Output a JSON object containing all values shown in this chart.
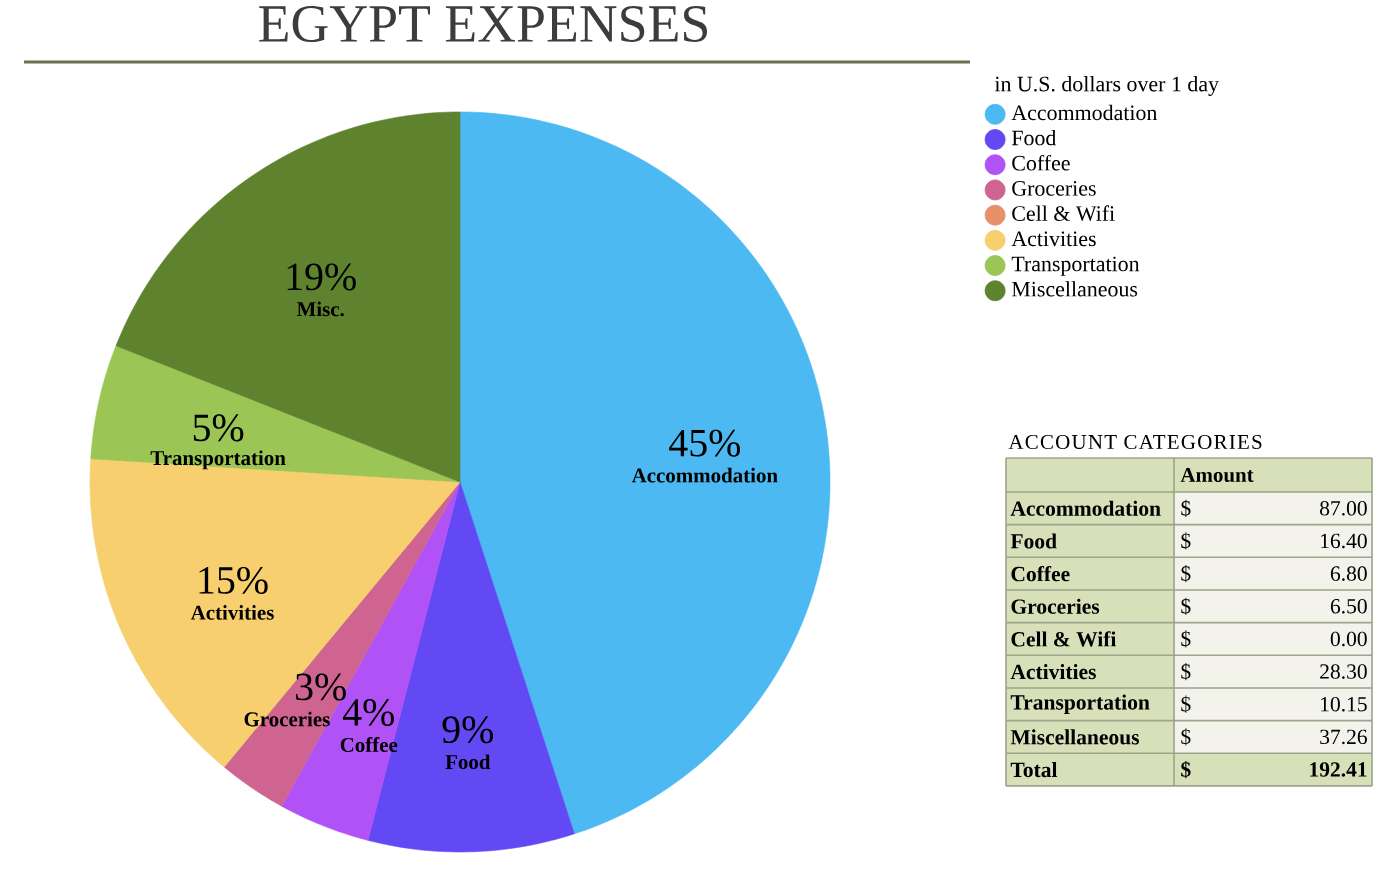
{
  "chart_data": [
    {
      "type": "pie",
      "title": "EGYPT EXPENSES",
      "legend_title": "in U.S. dollars over 1 day",
      "categories": [
        "Accommodation",
        "Food",
        "Coffee",
        "Groceries",
        "Cell & Wifi",
        "Activities",
        "Transportation",
        "Miscellaneous"
      ],
      "values": [
        45,
        9,
        4,
        3,
        0,
        15,
        5,
        19
      ],
      "colors": [
        "#4cb9f2",
        "#6249f3",
        "#b052f5",
        "#cf6491",
        "#e8906a",
        "#f7cf6e",
        "#9bc554",
        "#5f822f"
      ],
      "value_labels": [
        "45%",
        "9%",
        "4%",
        "3%",
        null,
        "15%",
        "5%",
        "19%"
      ],
      "annotations": [
        "Accommodation",
        "Food",
        "Coffee",
        "Groceries",
        "Activities",
        "Transportation",
        "Misc."
      ],
      "legend": "top right"
    },
    {
      "type": "other",
      "title": "ACCOUNT CATEGORIES",
      "xlabel": "Amount",
      "categories": [
        "Accommodation",
        "Food",
        "Coffee",
        "Groceries",
        "Cell & Wifi",
        "Activities",
        "Transportation",
        "Miscellaneous",
        "Total"
      ],
      "value_labels": [
        "87.00",
        "16.40",
        "6.80",
        "6.50",
        "0.00",
        "28.30",
        "10.15",
        "37.26",
        "192.41"
      ],
      "annotations": [
        "$",
        "$",
        "$",
        "$",
        "$",
        "$",
        "$",
        "$",
        "$"
      ]
    }
  ]
}
